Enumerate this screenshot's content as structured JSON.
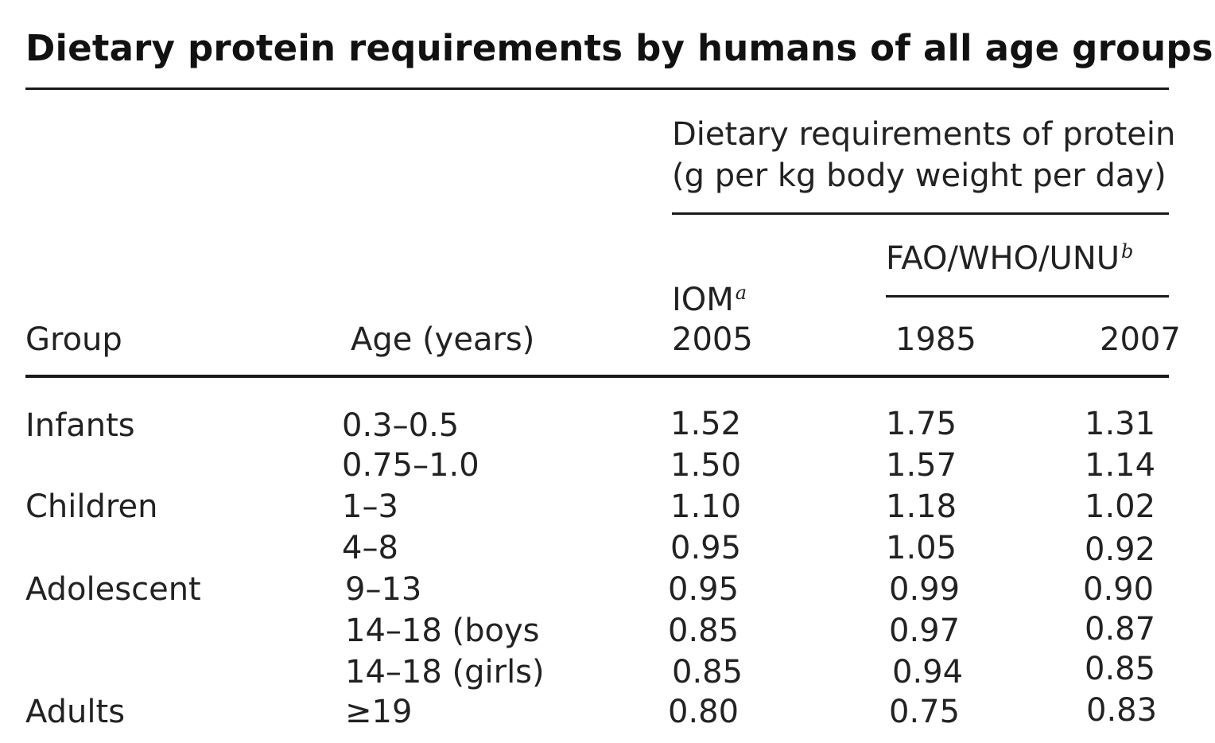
{
  "title": "Dietary protein requirements by humans of all age groups",
  "header": {
    "requirements_line1": "Dietary requirements of protein",
    "requirements_line2": "(g per kg body weight per day)",
    "fao_label": "FAO/WHO/UNU",
    "fao_footnote": "b",
    "iom_label": "IOM",
    "iom_footnote": "a",
    "iom_year": "2005",
    "group_label": "Group",
    "age_label": "Age (years)",
    "fao_year_1": "1985",
    "fao_year_2": "2007"
  },
  "rows": [
    {
      "group": "Infants",
      "age": "0.3–0.5",
      "iom2005": "1.52",
      "fao1985": "1.75",
      "fao2007": "1.31"
    },
    {
      "group": "",
      "age": "0.75–1.0",
      "iom2005": "1.50",
      "fao1985": "1.57",
      "fao2007": "1.14"
    },
    {
      "group": "Children",
      "age": "1–3",
      "iom2005": "1.10",
      "fao1985": "1.18",
      "fao2007": "1.02"
    },
    {
      "group": "",
      "age": "4–8",
      "iom2005": "0.95",
      "fao1985": "1.05",
      "fao2007": "0.92"
    },
    {
      "group": "Adolescent",
      "age": "9–13",
      "iom2005": "0.95",
      "fao1985": "0.99",
      "fao2007": "0.90"
    },
    {
      "group": "",
      "age": "14–18 (boys",
      "iom2005": "0.85",
      "fao1985": "0.97",
      "fao2007": "0.87"
    },
    {
      "group": "",
      "age": "14–18 (girls)",
      "iom2005": "0.85",
      "fao1985": "0.94",
      "fao2007": "0.85"
    },
    {
      "group": "Adults",
      "age": "≥19",
      "iom2005": "0.80",
      "fao1985": "0.75",
      "fao2007": "0.83"
    }
  ]
}
